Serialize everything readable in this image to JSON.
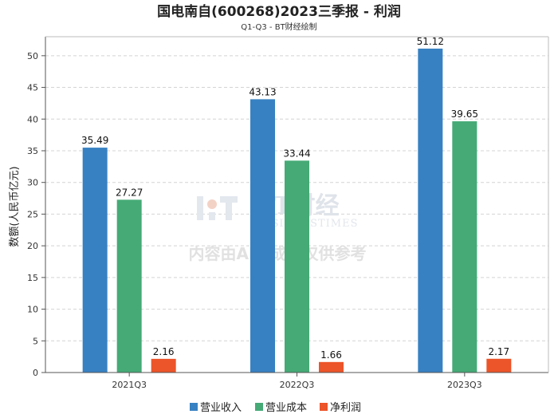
{
  "chart_data": {
    "type": "bar",
    "title": "国电南自(600268)2023三季报 - 利润",
    "subtitle": "Q1-Q3 - BT财经绘制",
    "ylabel": "数额(人民币亿元)",
    "xlabel": "",
    "categories": [
      "2021Q3",
      "2022Q3",
      "2023Q3"
    ],
    "ylim": [
      0,
      53
    ],
    "yticks": [
      0,
      5,
      10,
      15,
      20,
      25,
      30,
      35,
      40,
      45,
      50
    ],
    "grid": true,
    "legend_position": "bottom",
    "series": [
      {
        "name": "营业收入",
        "color": "#3781c2",
        "values": [
          35.49,
          43.13,
          51.12
        ]
      },
      {
        "name": "营业成本",
        "color": "#45aa76",
        "values": [
          27.27,
          33.44,
          39.65
        ]
      },
      {
        "name": "净利润",
        "color": "#ec5429",
        "values": [
          2.16,
          1.66,
          2.17
        ]
      }
    ]
  },
  "watermark": {
    "brand": "BT财经",
    "brand_sub": "BUSINESSTIMES",
    "note": "内容由AI生成，仅供参考"
  }
}
